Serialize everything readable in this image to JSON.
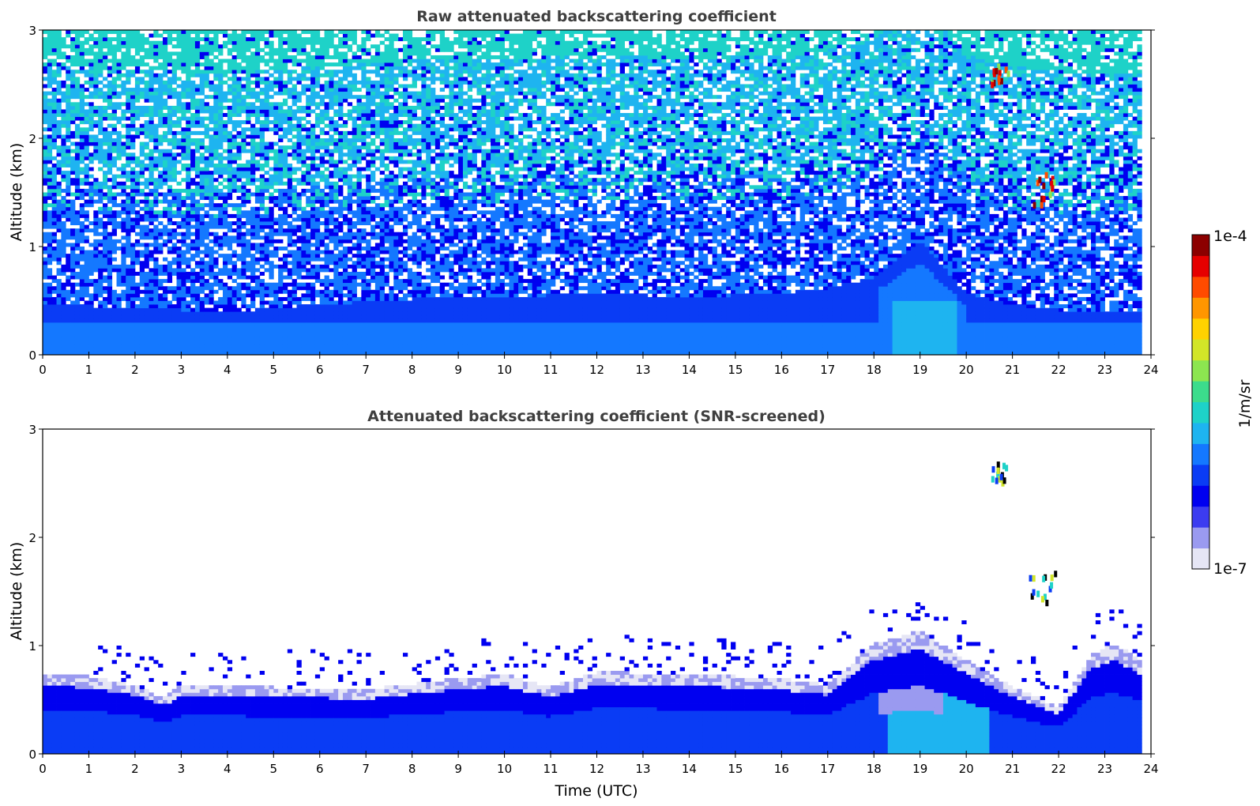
{
  "chart_data": [
    {
      "type": "heatmap",
      "title": "Raw attenuated backscattering coefficient",
      "xlabel": "",
      "ylabel": "Altitude (km)",
      "xlim": [
        0,
        24
      ],
      "ylim": [
        0,
        3
      ],
      "xticks": [
        "0",
        "1",
        "2",
        "3",
        "4",
        "5",
        "6",
        "7",
        "8",
        "9",
        "10",
        "11",
        "12",
        "13",
        "14",
        "15",
        "16",
        "17",
        "18",
        "19",
        "20",
        "21",
        "22",
        "23",
        "24"
      ],
      "yticks": [
        "0",
        "1",
        "2",
        "3"
      ],
      "data_time_extent_utc": [
        0,
        23.8
      ],
      "boundary_layer_top_km": [
        [
          0,
          0.45
        ],
        [
          2,
          0.42
        ],
        [
          4,
          0.38
        ],
        [
          6,
          0.45
        ],
        [
          8,
          0.5
        ],
        [
          10,
          0.52
        ],
        [
          12,
          0.55
        ],
        [
          14,
          0.52
        ],
        [
          16,
          0.55
        ],
        [
          17,
          0.6
        ],
        [
          18,
          0.7
        ],
        [
          19,
          1.05
        ],
        [
          20,
          0.55
        ],
        [
          21,
          0.45
        ],
        [
          22,
          0.4
        ],
        [
          23.8,
          0.38
        ]
      ],
      "clouds": [
        {
          "time_utc": [
            20.5,
            20.9
          ],
          "altitude_km": [
            2.45,
            2.65
          ]
        },
        {
          "time_utc": [
            21.3,
            21.9
          ],
          "altitude_km": [
            1.35,
            1.65
          ]
        }
      ]
    },
    {
      "type": "heatmap",
      "title": "Attenuated backscattering coefficient (SNR-screened)",
      "xlabel": "Time (UTC)",
      "ylabel": "Altitude (km)",
      "xlim": [
        0,
        24
      ],
      "ylim": [
        0,
        3
      ],
      "xticks": [
        "0",
        "1",
        "2",
        "3",
        "4",
        "5",
        "6",
        "7",
        "8",
        "9",
        "10",
        "11",
        "12",
        "13",
        "14",
        "15",
        "16",
        "17",
        "18",
        "19",
        "20",
        "21",
        "22",
        "23",
        "24"
      ],
      "yticks": [
        "0",
        "1",
        "2",
        "3"
      ],
      "data_time_extent_utc": [
        0,
        23.8
      ],
      "boundary_layer_top_km": [
        [
          0,
          0.72
        ],
        [
          1,
          0.7
        ],
        [
          2,
          0.62
        ],
        [
          2.6,
          0.5
        ],
        [
          3,
          0.62
        ],
        [
          5,
          0.6
        ],
        [
          7,
          0.58
        ],
        [
          9,
          0.68
        ],
        [
          10,
          0.72
        ],
        [
          11,
          0.6
        ],
        [
          12,
          0.74
        ],
        [
          14,
          0.72
        ],
        [
          16,
          0.68
        ],
        [
          17,
          0.62
        ],
        [
          18,
          1.0
        ],
        [
          19,
          1.12
        ],
        [
          20,
          0.85
        ],
        [
          21,
          0.6
        ],
        [
          22,
          0.42
        ],
        [
          22.7,
          0.9
        ],
        [
          23.2,
          1.0
        ],
        [
          23.8,
          0.85
        ]
      ],
      "clouds": [
        {
          "time_utc": [
            20.5,
            20.9
          ],
          "altitude_km": [
            2.45,
            2.65
          ]
        },
        {
          "time_utc": [
            21.3,
            21.9
          ],
          "altitude_km": [
            1.35,
            1.65
          ]
        }
      ]
    }
  ],
  "colorbar": {
    "label": "1/m/sr",
    "max_label": "1e-4",
    "min_label": "1e-7",
    "scale": "log",
    "range": [
      1e-07,
      0.0001
    ],
    "colors": [
      "#e6e6f5",
      "#9a9af0",
      "#3c3cf0",
      "#0000f0",
      "#0a3cf5",
      "#1478ff",
      "#1eb4f0",
      "#1ed2c8",
      "#3cdc8c",
      "#8ce650",
      "#d2e628",
      "#ffd200",
      "#ff9600",
      "#ff4b00",
      "#e60000",
      "#8c0000"
    ]
  }
}
